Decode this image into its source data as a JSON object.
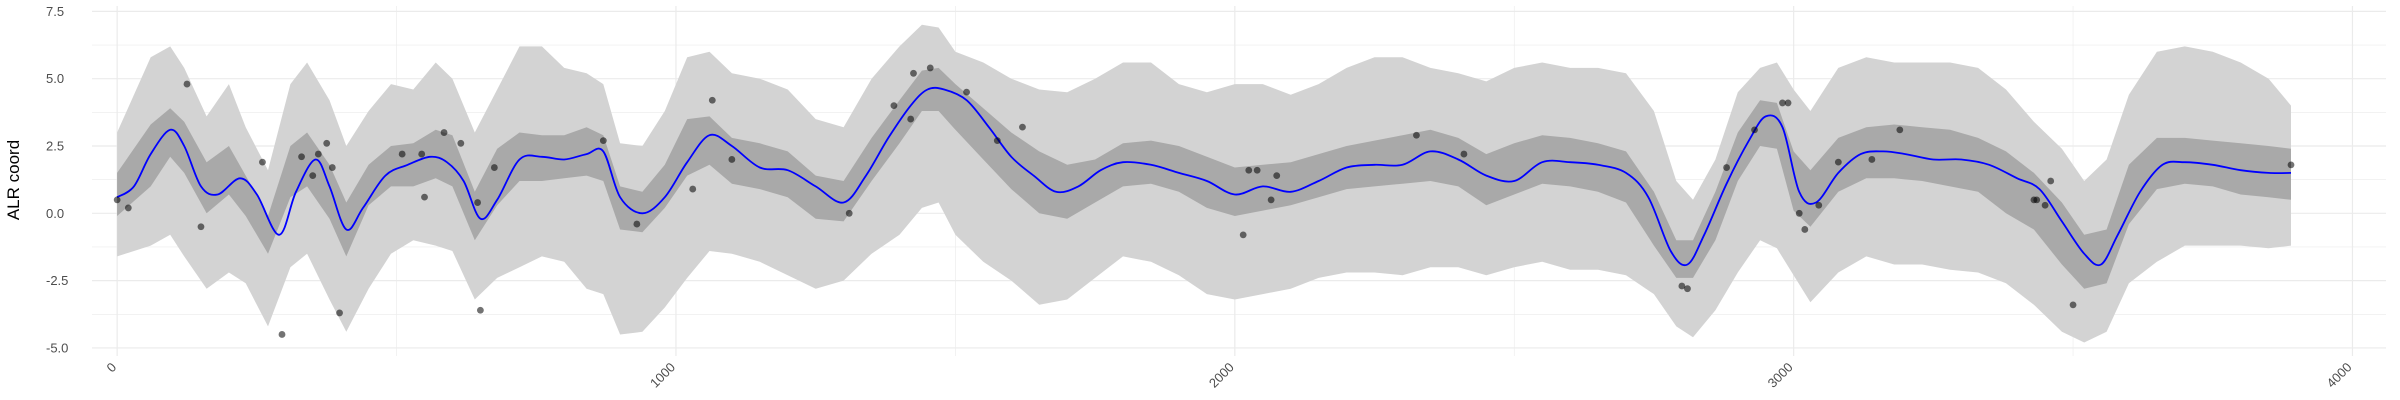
{
  "chart_data": {
    "type": "line",
    "title": "",
    "xlabel": "",
    "ylabel": "ALR coord",
    "xlim": [
      -45,
      4060
    ],
    "ylim": [
      -5.3,
      7.7
    ],
    "xticks": [
      0,
      1000,
      2000,
      3000,
      4000
    ],
    "xtick_labels": [
      "0",
      "1000",
      "2000",
      "3000",
      "4000"
    ],
    "yticks": [
      -5.0,
      -2.5,
      0.0,
      2.5,
      5.0,
      7.5
    ],
    "ytick_labels": [
      "-5.0",
      "-2.5",
      "0.0",
      "2.5",
      "5.0",
      "7.5"
    ],
    "grid": true,
    "colors": {
      "mean_line": "#0000ff",
      "inner_band": "#a9a9a9",
      "outer_band": "#d3d3d3",
      "points": "#000000",
      "grid": "#ebebeb",
      "tick_text": "#4d4d4d"
    },
    "series": [
      {
        "kind": "outer_band",
        "x": [
          0,
          60,
          95,
          120,
          160,
          200,
          230,
          270,
          310,
          340,
          380,
          410,
          450,
          490,
          530,
          570,
          600,
          640,
          680,
          720,
          760,
          800,
          840,
          870,
          900,
          940,
          980,
          1020,
          1060,
          1100,
          1150,
          1200,
          1250,
          1300,
          1350,
          1400,
          1440,
          1470,
          1500,
          1550,
          1600,
          1650,
          1700,
          1750,
          1800,
          1850,
          1900,
          1950,
          2000,
          2050,
          2100,
          2150,
          2200,
          2250,
          2300,
          2350,
          2400,
          2450,
          2500,
          2550,
          2600,
          2650,
          2700,
          2750,
          2790,
          2820,
          2860,
          2900,
          2940,
          2970,
          3000,
          3030,
          3080,
          3130,
          3180,
          3230,
          3280,
          3330,
          3380,
          3430,
          3480,
          3520,
          3560,
          3600,
          3650,
          3700,
          3750,
          3800,
          3850,
          3890
        ],
        "upper": [
          3.0,
          5.8,
          6.2,
          5.4,
          3.6,
          4.8,
          3.2,
          1.6,
          4.8,
          5.6,
          4.2,
          2.5,
          3.8,
          4.8,
          4.6,
          5.6,
          5.0,
          3.0,
          4.6,
          6.2,
          6.2,
          5.4,
          5.2,
          4.8,
          2.6,
          2.5,
          3.8,
          5.8,
          6.0,
          5.2,
          5.0,
          4.6,
          3.5,
          3.2,
          5.0,
          6.2,
          7.0,
          6.9,
          6.0,
          5.6,
          5.0,
          4.6,
          4.5,
          5.0,
          5.6,
          5.6,
          4.8,
          4.5,
          4.8,
          4.8,
          4.4,
          4.8,
          5.4,
          5.8,
          5.8,
          5.4,
          5.2,
          4.9,
          5.4,
          5.6,
          5.4,
          5.4,
          5.2,
          3.8,
          1.2,
          0.5,
          2.0,
          4.5,
          5.4,
          5.6,
          4.6,
          3.8,
          5.4,
          5.8,
          5.6,
          5.6,
          5.6,
          5.4,
          4.6,
          3.4,
          2.4,
          1.2,
          2.0,
          4.4,
          6.0,
          6.2,
          6.0,
          5.6,
          5.0,
          4.0
        ],
        "lower": [
          -1.6,
          -1.2,
          -0.8,
          -1.6,
          -2.8,
          -2.2,
          -2.6,
          -4.2,
          -2.0,
          -1.5,
          -3.2,
          -4.4,
          -2.8,
          -1.5,
          -1.0,
          -1.2,
          -1.4,
          -3.2,
          -2.4,
          -2.0,
          -1.6,
          -1.8,
          -2.8,
          -3.0,
          -4.5,
          -4.4,
          -3.5,
          -2.4,
          -1.4,
          -1.5,
          -1.8,
          -2.3,
          -2.8,
          -2.5,
          -1.5,
          -0.8,
          0.2,
          0.4,
          -0.8,
          -1.8,
          -2.5,
          -3.4,
          -3.2,
          -2.4,
          -1.6,
          -1.8,
          -2.3,
          -3.0,
          -3.2,
          -3.0,
          -2.8,
          -2.4,
          -2.2,
          -2.2,
          -2.3,
          -2.0,
          -2.0,
          -2.3,
          -2.0,
          -1.8,
          -2.1,
          -2.1,
          -2.3,
          -3.0,
          -4.2,
          -4.6,
          -3.6,
          -2.2,
          -1.0,
          -1.3,
          -2.3,
          -3.3,
          -2.2,
          -1.6,
          -1.9,
          -1.9,
          -2.1,
          -2.2,
          -2.6,
          -3.4,
          -4.4,
          -4.8,
          -4.4,
          -2.6,
          -1.8,
          -1.2,
          -1.2,
          -1.2,
          -1.3,
          -1.2
        ]
      },
      {
        "kind": "inner_band",
        "x": [
          0,
          60,
          95,
          120,
          160,
          200,
          230,
          270,
          310,
          340,
          380,
          410,
          450,
          490,
          530,
          570,
          600,
          640,
          680,
          720,
          760,
          800,
          840,
          870,
          900,
          940,
          980,
          1020,
          1060,
          1100,
          1150,
          1200,
          1250,
          1300,
          1350,
          1400,
          1440,
          1470,
          1500,
          1550,
          1600,
          1650,
          1700,
          1750,
          1800,
          1850,
          1900,
          1950,
          2000,
          2050,
          2100,
          2150,
          2200,
          2250,
          2300,
          2350,
          2400,
          2450,
          2500,
          2550,
          2600,
          2650,
          2700,
          2750,
          2790,
          2820,
          2860,
          2900,
          2940,
          2970,
          3000,
          3030,
          3080,
          3130,
          3180,
          3230,
          3280,
          3330,
          3380,
          3430,
          3480,
          3520,
          3560,
          3600,
          3650,
          3700,
          3750,
          3800,
          3850,
          3890
        ],
        "upper": [
          1.5,
          3.3,
          3.9,
          3.4,
          1.9,
          2.5,
          1.4,
          -0.1,
          2.5,
          3.0,
          1.8,
          0.4,
          1.8,
          2.5,
          2.6,
          3.1,
          2.9,
          0.8,
          2.4,
          3.0,
          2.9,
          2.9,
          3.2,
          2.9,
          1.0,
          0.8,
          1.8,
          3.5,
          3.6,
          2.8,
          2.6,
          2.3,
          1.4,
          1.2,
          2.8,
          4.2,
          5.3,
          5.4,
          4.8,
          3.9,
          3.0,
          2.3,
          1.8,
          2.0,
          2.6,
          2.7,
          2.5,
          2.1,
          1.7,
          1.8,
          1.9,
          2.2,
          2.5,
          2.7,
          2.9,
          3.1,
          2.8,
          2.2,
          2.6,
          2.9,
          2.8,
          2.6,
          2.3,
          0.8,
          -1.0,
          -1.0,
          0.8,
          3.0,
          4.2,
          4.1,
          2.3,
          1.6,
          2.8,
          3.2,
          3.3,
          3.2,
          3.1,
          2.8,
          2.3,
          1.5,
          0.4,
          -0.8,
          -0.6,
          1.8,
          2.8,
          2.8,
          2.7,
          2.6,
          2.5,
          2.4
        ]
      },
      {
        "kind": "inner_band_low",
        "lower": [
          -0.1,
          1.0,
          2.1,
          1.5,
          0.0,
          0.7,
          -0.1,
          -1.5,
          0.6,
          1.0,
          -0.2,
          -1.6,
          0.3,
          1.0,
          1.0,
          1.3,
          1.0,
          -1.0,
          0.3,
          1.2,
          1.2,
          1.3,
          1.4,
          1.2,
          -0.6,
          -0.7,
          0.2,
          1.4,
          1.8,
          1.1,
          0.9,
          0.6,
          -0.2,
          -0.3,
          1.2,
          2.6,
          3.8,
          3.8,
          3.1,
          2.0,
          0.9,
          0.0,
          -0.2,
          0.4,
          1.0,
          1.1,
          0.8,
          0.2,
          -0.1,
          0.1,
          0.3,
          0.6,
          0.9,
          1.0,
          1.1,
          1.2,
          1.0,
          0.3,
          0.7,
          1.1,
          1.0,
          0.8,
          0.4,
          -1.2,
          -2.4,
          -2.4,
          -1.0,
          1.2,
          2.5,
          2.4,
          0.1,
          -0.5,
          0.8,
          1.3,
          1.3,
          1.2,
          1.0,
          0.8,
          0.0,
          -0.6,
          -1.9,
          -2.8,
          -2.6,
          -0.4,
          0.9,
          1.1,
          1.0,
          0.7,
          0.6,
          0.5
        ]
      },
      {
        "kind": "mean",
        "x": [
          0,
          30,
          60,
          95,
          120,
          150,
          180,
          220,
          250,
          290,
          320,
          355,
          380,
          410,
          440,
          480,
          520,
          560,
          590,
          620,
          650,
          680,
          720,
          760,
          800,
          840,
          870,
          900,
          940,
          980,
          1020,
          1060,
          1100,
          1150,
          1200,
          1250,
          1300,
          1340,
          1380,
          1420,
          1450,
          1480,
          1520,
          1560,
          1600,
          1640,
          1680,
          1720,
          1760,
          1800,
          1850,
          1900,
          1950,
          2000,
          2050,
          2100,
          2150,
          2200,
          2250,
          2300,
          2350,
          2400,
          2450,
          2500,
          2550,
          2600,
          2650,
          2700,
          2740,
          2780,
          2810,
          2840,
          2880,
          2920,
          2950,
          2980,
          3010,
          3040,
          3080,
          3120,
          3160,
          3200,
          3250,
          3300,
          3350,
          3400,
          3440,
          3480,
          3520,
          3550,
          3580,
          3620,
          3660,
          3700,
          3750,
          3800,
          3850,
          3890
        ],
        "y": [
          0.6,
          1.0,
          2.2,
          3.1,
          2.5,
          1.0,
          0.7,
          1.3,
          0.7,
          -0.8,
          0.8,
          2.0,
          1.0,
          -0.6,
          0.2,
          1.4,
          1.8,
          2.1,
          1.9,
          1.2,
          -0.2,
          0.5,
          2.0,
          2.1,
          2.0,
          2.2,
          2.3,
          0.6,
          0.0,
          0.6,
          1.9,
          2.9,
          2.5,
          1.7,
          1.6,
          1.0,
          0.4,
          1.4,
          2.8,
          4.0,
          4.6,
          4.6,
          4.2,
          3.2,
          2.1,
          1.4,
          0.8,
          1.0,
          1.6,
          1.9,
          1.8,
          1.5,
          1.2,
          0.7,
          1.0,
          0.8,
          1.2,
          1.7,
          1.8,
          1.8,
          2.3,
          2.0,
          1.4,
          1.2,
          1.9,
          1.9,
          1.8,
          1.5,
          0.6,
          -1.4,
          -1.9,
          -0.8,
          1.1,
          2.7,
          3.6,
          3.2,
          0.8,
          0.4,
          1.5,
          2.2,
          2.3,
          2.2,
          2.0,
          2.0,
          1.8,
          1.3,
          0.9,
          -0.3,
          -1.5,
          -1.9,
          -0.8,
          0.8,
          1.8,
          1.9,
          1.8,
          1.6,
          1.5,
          1.5
        ]
      },
      {
        "kind": "points",
        "x": [
          0,
          20,
          125,
          150,
          260,
          295,
          330,
          350,
          360,
          375,
          385,
          398,
          510,
          545,
          550,
          585,
          615,
          645,
          650,
          675,
          870,
          930,
          1030,
          1065,
          1100,
          1310,
          1390,
          1420,
          1425,
          1455,
          1520,
          1575,
          1620,
          2015,
          2025,
          2040,
          2065,
          2075,
          2325,
          2410,
          2800,
          2810,
          2880,
          2930,
          2980,
          2990,
          3010,
          3020,
          3045,
          3080,
          3140,
          3190,
          3430,
          3435,
          3450,
          3460,
          3500,
          3890
        ],
        "y": [
          0.5,
          0.2,
          4.8,
          -0.5,
          1.9,
          -4.5,
          2.1,
          1.4,
          2.2,
          2.6,
          1.7,
          -3.7,
          2.2,
          2.2,
          0.6,
          3.0,
          2.6,
          0.4,
          -3.6,
          1.7,
          2.7,
          -0.4,
          0.9,
          4.2,
          2.0,
          0.0,
          4.0,
          3.5,
          5.2,
          5.4,
          4.5,
          2.7,
          3.2,
          -0.8,
          1.6,
          1.6,
          0.5,
          1.4,
          2.9,
          2.2,
          -2.7,
          -2.8,
          1.7,
          3.1,
          4.1,
          4.1,
          0.0,
          -0.6,
          0.3,
          1.9,
          2.0,
          3.1,
          0.5,
          0.5,
          0.3,
          1.2,
          -3.4,
          1.8
        ]
      }
    ]
  }
}
